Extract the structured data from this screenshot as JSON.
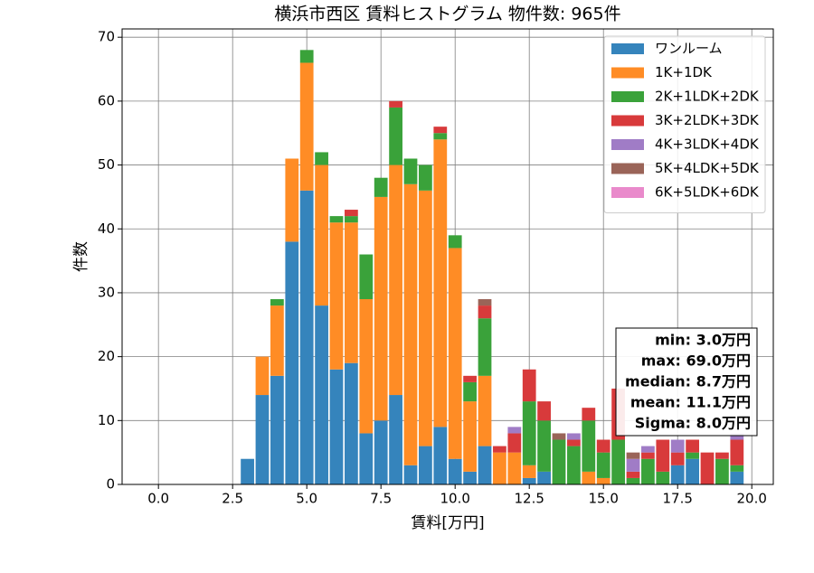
{
  "chart_data": {
    "type": "histogram",
    "title": "横浜市西区 賃料ヒストグラム 物件数: 965件",
    "x_label": "賃料[万円]",
    "y_label": "件数",
    "bins": [
      2.75,
      3.25,
      3.75,
      4.25,
      4.75,
      5.25,
      5.75,
      6.25,
      6.75,
      7.25,
      7.75,
      8.25,
      8.75,
      9.25,
      9.75,
      10.25,
      10.75,
      11.25,
      11.75,
      12.25,
      12.75,
      13.25,
      13.75,
      14.25,
      14.75,
      15.25,
      15.75,
      16.25,
      16.75,
      17.25,
      17.75,
      18.25,
      18.75,
      19.25,
      19.75
    ],
    "series": [
      {
        "name": "ワンルーム",
        "color": "#3584bc",
        "values": [
          4,
          14,
          17,
          38,
          46,
          28,
          18,
          19,
          8,
          10,
          14,
          3,
          6,
          9,
          4,
          2,
          6,
          0,
          0,
          1,
          2,
          0,
          0,
          0,
          0,
          0,
          0,
          0,
          0,
          3,
          4,
          0,
          0,
          2
        ]
      },
      {
        "name": "1K+1DK",
        "color": "#ff8c25",
        "values": [
          0,
          6,
          11,
          13,
          20,
          22,
          23,
          22,
          21,
          35,
          36,
          44,
          40,
          45,
          33,
          11,
          11,
          5,
          5,
          2,
          0,
          0,
          0,
          2,
          1,
          0,
          0,
          0,
          0,
          0,
          0,
          0,
          0,
          0
        ]
      },
      {
        "name": "2K+1LDK+2DK",
        "color": "#3aa23a",
        "values": [
          0,
          0,
          1,
          0,
          2,
          2,
          1,
          1,
          7,
          3,
          9,
          4,
          4,
          1,
          2,
          3,
          9,
          0,
          0,
          10,
          8,
          7,
          6,
          8,
          4,
          7,
          1,
          4,
          2,
          0,
          1,
          0,
          4,
          1
        ]
      },
      {
        "name": "3K+2LDK+3DK",
        "color": "#d83a3b",
        "values": [
          0,
          0,
          0,
          0,
          0,
          0,
          0,
          1,
          0,
          0,
          1,
          0,
          0,
          1,
          0,
          1,
          2,
          1,
          3,
          5,
          3,
          0,
          1,
          2,
          2,
          8,
          1,
          1,
          5,
          2,
          2,
          5,
          1,
          4
        ]
      },
      {
        "name": "4K+3LDK+4DK",
        "color": "#a07cc6",
        "values": [
          0,
          0,
          0,
          0,
          0,
          0,
          0,
          0,
          0,
          0,
          0,
          0,
          0,
          0,
          0,
          0,
          0,
          0,
          1,
          0,
          0,
          0,
          1,
          0,
          0,
          0,
          2,
          1,
          0,
          2,
          0,
          0,
          0,
          1
        ]
      },
      {
        "name": "5K+4LDK+5DK",
        "color": "#9a6458",
        "values": [
          0,
          0,
          0,
          0,
          0,
          0,
          0,
          0,
          0,
          0,
          0,
          0,
          0,
          0,
          0,
          0,
          1,
          0,
          0,
          0,
          0,
          1,
          0,
          0,
          0,
          0,
          1,
          0,
          0,
          0,
          0,
          0,
          0,
          0
        ]
      },
      {
        "name": "6K+5LDK+6DK",
        "color": "#e98acb",
        "values": [
          0,
          0,
          0,
          0,
          0,
          0,
          0,
          0,
          0,
          0,
          0,
          0,
          0,
          0,
          0,
          0,
          0,
          0,
          0,
          0,
          0,
          0,
          0,
          0,
          0,
          0,
          0,
          0,
          0,
          0,
          0,
          0,
          0,
          0
        ]
      }
    ],
    "xlim": [
      -1.225,
      20.725
    ],
    "ylim": [
      0,
      71.3
    ],
    "xticks": [
      {
        "value": 0,
        "label": "0.0"
      },
      {
        "value": 2.5,
        "label": "2.5"
      },
      {
        "value": 5,
        "label": "5.0"
      },
      {
        "value": 7.5,
        "label": "7.5"
      },
      {
        "value": 10,
        "label": "10.0"
      },
      {
        "value": 12.5,
        "label": "12.5"
      },
      {
        "value": 15,
        "label": "15.0"
      },
      {
        "value": 17.5,
        "label": "17.5"
      },
      {
        "value": 20,
        "label": "20.0"
      }
    ],
    "yticks": [
      0,
      10,
      20,
      30,
      40,
      50,
      60,
      70
    ],
    "grid": true,
    "legend": "upper right",
    "stats": [
      "min: 3.0万円",
      "max: 69.0万円",
      "median: 8.7万円",
      "mean: 11.1万円",
      "Sigma: 8.0万円"
    ]
  }
}
